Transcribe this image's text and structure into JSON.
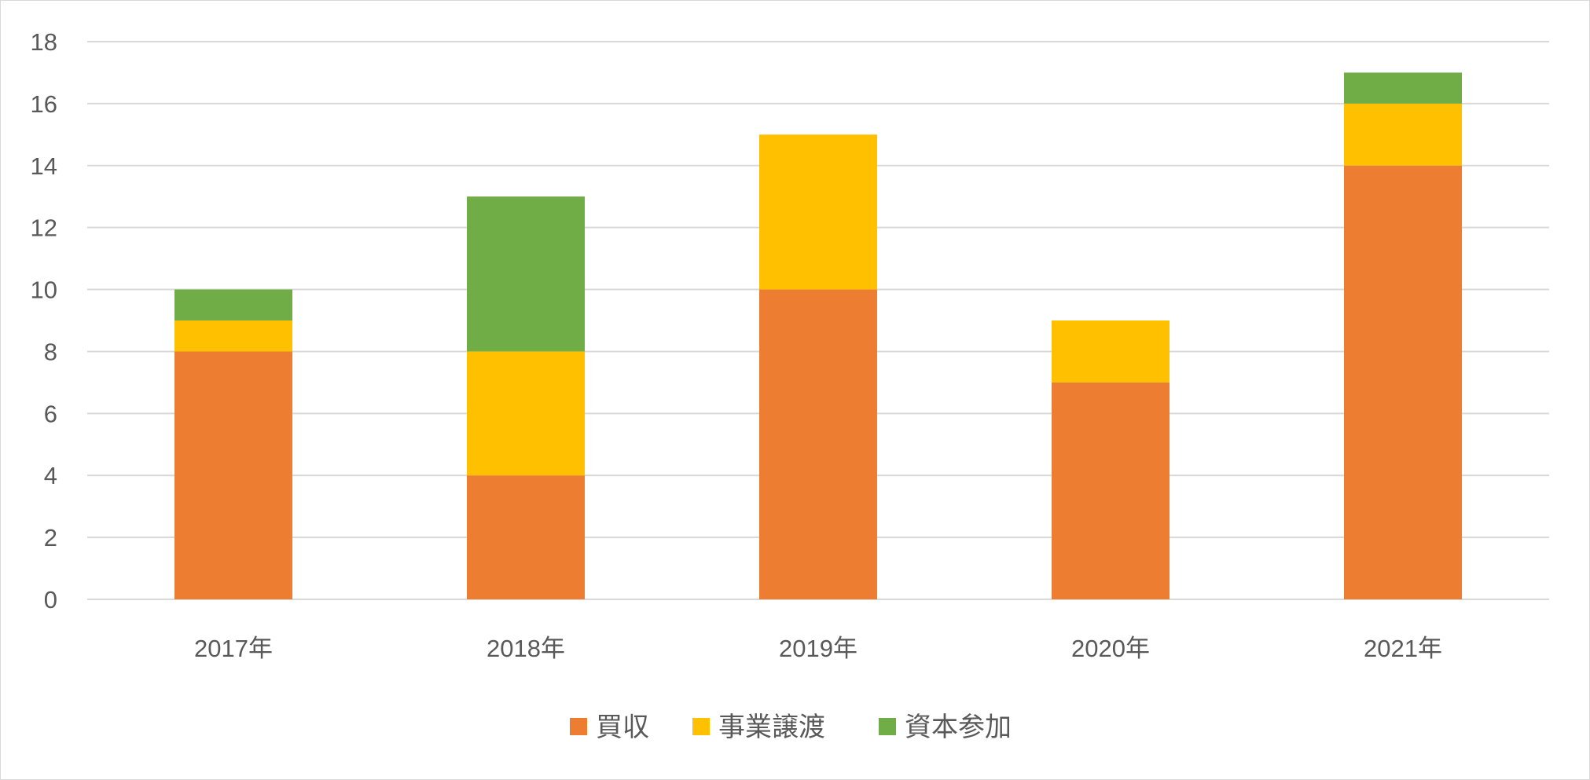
{
  "chart_data": {
    "type": "bar",
    "stacked": true,
    "categories": [
      "2017年",
      "2018年",
      "2019年",
      "2020年",
      "2021年"
    ],
    "series": [
      {
        "name": "買収",
        "color": "#ED7D31",
        "values": [
          8,
          4,
          10,
          7,
          14
        ]
      },
      {
        "name": "事業譲渡",
        "color": "#FFC000",
        "values": [
          1,
          4,
          5,
          2,
          2
        ]
      },
      {
        "name": "資本参加",
        "color": "#70AD47",
        "values": [
          1,
          5,
          0,
          0,
          1
        ]
      }
    ],
    "ylim": [
      0,
      18
    ],
    "yticks": [
      0,
      2,
      4,
      6,
      8,
      10,
      12,
      14,
      16,
      18
    ],
    "grid": true,
    "legend": "bottom"
  }
}
